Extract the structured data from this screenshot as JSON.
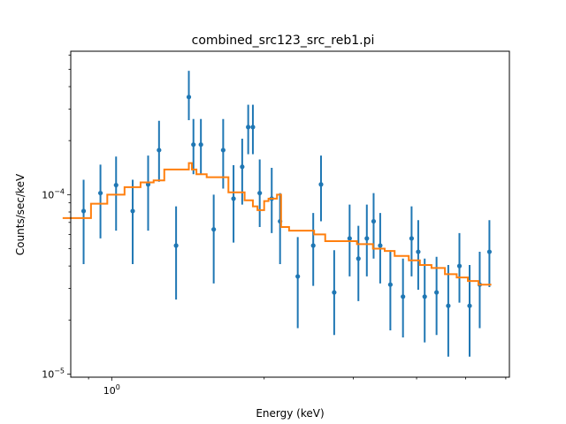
{
  "chart_data": {
    "type": "scatter",
    "title": "combined_src123_src_reb1.pi",
    "xlabel": "Energy (keV)",
    "ylabel": "Counts/sec/keV",
    "xscale": "log",
    "yscale": "log",
    "xlim": [
      0.83,
      6.1
    ],
    "ylim": [
      9.6e-06,
      0.00063
    ],
    "x_tick_labels": [
      {
        "value": 1,
        "label": "10^0"
      }
    ],
    "y_tick_labels": [
      {
        "value": 1e-05,
        "label": "10^-5"
      },
      {
        "value": 0.0001,
        "label": "10^-4"
      }
    ],
    "grid": false,
    "colors": {
      "data": "#1f77b4",
      "model": "#ff7f0e"
    },
    "series": [
      {
        "kind": "data",
        "points": [
          {
            "x": 0.88,
            "y": 8.1e-05,
            "ylo": 4.1e-05,
            "yhi": 0.000121
          },
          {
            "x": 0.95,
            "y": 0.000102,
            "ylo": 5.7e-05,
            "yhi": 0.000147
          },
          {
            "x": 1.02,
            "y": 0.000113,
            "ylo": 6.3e-05,
            "yhi": 0.000163
          },
          {
            "x": 1.1,
            "y": 8.1e-05,
            "ylo": 4.1e-05,
            "yhi": 0.000121
          },
          {
            "x": 1.18,
            "y": 0.000114,
            "ylo": 6.3e-05,
            "yhi": 0.000165
          },
          {
            "x": 1.24,
            "y": 0.000177,
            "ylo": 0.000118,
            "yhi": 0.000258
          },
          {
            "x": 1.34,
            "y": 5.2e-05,
            "ylo": 2.6e-05,
            "yhi": 8.6e-05
          },
          {
            "x": 1.42,
            "y": 0.00035,
            "ylo": 0.00026,
            "yhi": 0.00049
          },
          {
            "x": 1.45,
            "y": 0.00019,
            "ylo": 0.00013,
            "yhi": 0.000264
          },
          {
            "x": 1.5,
            "y": 0.00019,
            "ylo": 0.00013,
            "yhi": 0.000264
          },
          {
            "x": 1.59,
            "y": 6.4e-05,
            "ylo": 3.2e-05,
            "yhi": 0.0001
          },
          {
            "x": 1.66,
            "y": 0.000177,
            "ylo": 0.000108,
            "yhi": 0.000264
          },
          {
            "x": 1.74,
            "y": 9.5e-05,
            "ylo": 5.4e-05,
            "yhi": 0.000146
          },
          {
            "x": 1.81,
            "y": 0.000143,
            "ylo": 8.8e-05,
            "yhi": 0.000205
          },
          {
            "x": 1.86,
            "y": 0.000238,
            "ylo": 0.000168,
            "yhi": 0.000317
          },
          {
            "x": 1.9,
            "y": 0.000238,
            "ylo": 0.000168,
            "yhi": 0.000317
          },
          {
            "x": 1.96,
            "y": 0.000102,
            "ylo": 6.6e-05,
            "yhi": 0.000157
          },
          {
            "x": 2.07,
            "y": 9.5e-05,
            "ylo": 6.1e-05,
            "yhi": 0.000141
          },
          {
            "x": 2.15,
            "y": 7.1e-05,
            "ylo": 4.1e-05,
            "yhi": 0.000102
          },
          {
            "x": 2.33,
            "y": 3.5e-05,
            "ylo": 1.8e-05,
            "yhi": 5.8e-05
          },
          {
            "x": 2.5,
            "y": 5.2e-05,
            "ylo": 3.1e-05,
            "yhi": 7.9e-05
          },
          {
            "x": 2.59,
            "y": 0.000114,
            "ylo": 7.1e-05,
            "yhi": 0.000165
          },
          {
            "x": 2.75,
            "y": 2.85e-05,
            "ylo": 1.65e-05,
            "yhi": 4.9e-05
          },
          {
            "x": 2.95,
            "y": 5.7e-05,
            "ylo": 3.5e-05,
            "yhi": 8.8e-05
          },
          {
            "x": 3.07,
            "y": 4.4e-05,
            "ylo": 2.55e-05,
            "yhi": 6.7e-05
          },
          {
            "x": 3.19,
            "y": 5.7e-05,
            "ylo": 3.5e-05,
            "yhi": 8.8e-05
          },
          {
            "x": 3.29,
            "y": 7.1e-05,
            "ylo": 4.4e-05,
            "yhi": 0.000102
          },
          {
            "x": 3.39,
            "y": 5.2e-05,
            "ylo": 3.2e-05,
            "yhi": 7.9e-05
          },
          {
            "x": 3.55,
            "y": 3.15e-05,
            "ylo": 1.75e-05,
            "yhi": 4.9e-05
          },
          {
            "x": 3.76,
            "y": 2.7e-05,
            "ylo": 1.6e-05,
            "yhi": 4.4e-05
          },
          {
            "x": 3.91,
            "y": 5.7e-05,
            "ylo": 3.5e-05,
            "yhi": 8.6e-05
          },
          {
            "x": 4.03,
            "y": 4.8e-05,
            "ylo": 2.95e-05,
            "yhi": 7.2e-05
          },
          {
            "x": 4.15,
            "y": 2.7e-05,
            "ylo": 1.5e-05,
            "yhi": 4.4e-05
          },
          {
            "x": 4.38,
            "y": 2.85e-05,
            "ylo": 1.65e-05,
            "yhi": 4.5e-05
          },
          {
            "x": 4.62,
            "y": 2.4e-05,
            "ylo": 1.25e-05,
            "yhi": 4.05e-05
          },
          {
            "x": 4.86,
            "y": 4e-05,
            "ylo": 2.5e-05,
            "yhi": 6.1e-05
          },
          {
            "x": 5.09,
            "y": 2.4e-05,
            "ylo": 1.25e-05,
            "yhi": 4.05e-05
          },
          {
            "x": 5.33,
            "y": 3.15e-05,
            "ylo": 1.8e-05,
            "yhi": 4.8e-05
          },
          {
            "x": 5.57,
            "y": 4.8e-05,
            "ylo": 3.05e-05,
            "yhi": 7.2e-05
          }
        ]
      },
      {
        "kind": "model",
        "step": [
          [
            0.8,
            7.4e-05
          ],
          [
            0.88,
            7.4e-05
          ],
          [
            0.88,
            7.4e-05
          ],
          [
            0.91,
            7.4e-05
          ],
          [
            0.91,
            8.9e-05
          ],
          [
            0.98,
            8.9e-05
          ],
          [
            0.98,
            0.0001
          ],
          [
            1.06,
            0.0001
          ],
          [
            1.06,
            0.00011
          ],
          [
            1.14,
            0.00011
          ],
          [
            1.14,
            0.000117
          ],
          [
            1.21,
            0.000117
          ],
          [
            1.21,
            0.00012
          ],
          [
            1.27,
            0.00012
          ],
          [
            1.27,
            0.000138
          ],
          [
            1.42,
            0.000138
          ],
          [
            1.42,
            0.00015
          ],
          [
            1.44,
            0.00015
          ],
          [
            1.44,
            0.000138
          ],
          [
            1.47,
            0.000138
          ],
          [
            1.47,
            0.00013
          ],
          [
            1.54,
            0.00013
          ],
          [
            1.54,
            0.000125
          ],
          [
            1.7,
            0.000125
          ],
          [
            1.7,
            0.000103
          ],
          [
            1.83,
            0.000103
          ],
          [
            1.83,
            9.3e-05
          ],
          [
            1.9,
            9.3e-05
          ],
          [
            1.9,
            8.6e-05
          ],
          [
            1.94,
            8.6e-05
          ],
          [
            1.94,
            8.2e-05
          ],
          [
            2.0,
            8.2e-05
          ],
          [
            2.0,
            9.2e-05
          ],
          [
            2.04,
            9.2e-05
          ],
          [
            2.04,
            9.5e-05
          ],
          [
            2.12,
            9.5e-05
          ],
          [
            2.12,
            0.0001
          ],
          [
            2.16,
            0.0001
          ],
          [
            2.16,
            6.6e-05
          ],
          [
            2.24,
            6.6e-05
          ],
          [
            2.24,
            6.3e-05
          ],
          [
            2.51,
            6.3e-05
          ],
          [
            2.51,
            6e-05
          ],
          [
            2.64,
            6e-05
          ],
          [
            2.64,
            5.5e-05
          ],
          [
            3.05,
            5.5e-05
          ],
          [
            3.05,
            5.3e-05
          ],
          [
            3.28,
            5.3e-05
          ],
          [
            3.28,
            5e-05
          ],
          [
            3.46,
            5e-05
          ],
          [
            3.46,
            4.85e-05
          ],
          [
            3.62,
            4.85e-05
          ],
          [
            3.62,
            4.55e-05
          ],
          [
            3.86,
            4.55e-05
          ],
          [
            3.86,
            4.3e-05
          ],
          [
            4.06,
            4.3e-05
          ],
          [
            4.06,
            4.05e-05
          ],
          [
            4.28,
            4.05e-05
          ],
          [
            4.28,
            3.9e-05
          ],
          [
            4.55,
            3.9e-05
          ],
          [
            4.55,
            3.6e-05
          ],
          [
            4.8,
            3.6e-05
          ],
          [
            4.8,
            3.45e-05
          ],
          [
            5.05,
            3.45e-05
          ],
          [
            5.05,
            3.3e-05
          ],
          [
            5.3,
            3.3e-05
          ],
          [
            5.3,
            3.15e-05
          ],
          [
            5.62,
            3.15e-05
          ]
        ]
      }
    ]
  }
}
